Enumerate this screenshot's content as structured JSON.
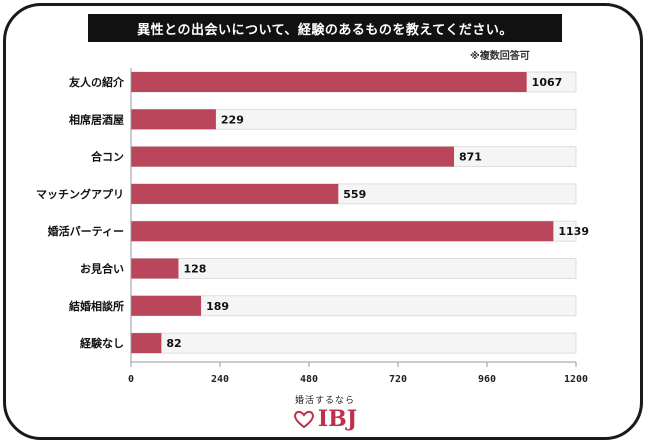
{
  "title": "異性との出会いについて、経験のあるものを教えてください。",
  "note": "※複数回答可",
  "colors": {
    "bar": "#b9465a",
    "track": "#f6f5f5",
    "trackBorder": "#d8d8d8"
  },
  "chart_data": {
    "type": "bar",
    "orientation": "horizontal",
    "categories": [
      "友人の紹介",
      "相席居酒屋",
      "合コン",
      "マッチングアプリ",
      "婚活パーティー",
      "お見合い",
      "結婚相談所",
      "経験なし"
    ],
    "values": [
      1067,
      229,
      871,
      559,
      1139,
      128,
      189,
      82
    ],
    "xlim": [
      0,
      1200
    ],
    "xticks": [
      0,
      240,
      480,
      720,
      960,
      1200
    ],
    "data_labels": true,
    "grid": false
  },
  "logo": {
    "tagline": "婚活するなら",
    "text": "IBJ",
    "icon": "heart-icon"
  }
}
